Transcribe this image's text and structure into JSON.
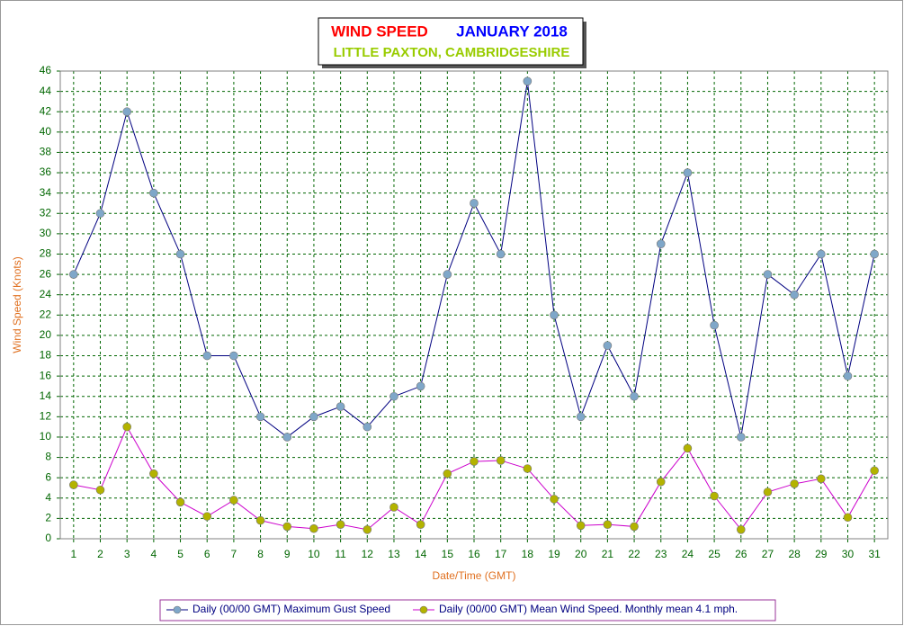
{
  "chart_data": {
    "type": "line",
    "title": [
      "WIND SPEED",
      "JANUARY 2018"
    ],
    "title_colors": [
      "#ff0000",
      "#0000ff"
    ],
    "subtitle": "LITTLE PAXTON, CAMBRIDGESHIRE",
    "subtitle_color": "#99cc00",
    "y_label": "Wind Speed (Knots)",
    "x_label": "Date/Time (GMT)",
    "categories": [
      1,
      2,
      3,
      4,
      5,
      6,
      7,
      8,
      9,
      10,
      11,
      12,
      13,
      14,
      15,
      16,
      17,
      18,
      19,
      20,
      21,
      22,
      23,
      24,
      25,
      26,
      27,
      28,
      29,
      30,
      31
    ],
    "series": [
      {
        "name": "Daily (00/00 GMT) Maximum Gust Speed",
        "color": "#000080",
        "marker_color": "#7fa7c9",
        "values": [
          26,
          32,
          42,
          34,
          28,
          18,
          18,
          12,
          10,
          12,
          13,
          11,
          14,
          15,
          26,
          33,
          28,
          45,
          22,
          12,
          19,
          14,
          29,
          36,
          21,
          10,
          26,
          24,
          28,
          16,
          28
        ]
      },
      {
        "name": "Daily (00/00 GMT) Mean Wind Speed. Monthly mean 4.1 mph.",
        "color": "#cc00cc",
        "marker_color": "#b3b300",
        "values": [
          5.3,
          4.8,
          11,
          6.4,
          3.6,
          2.2,
          3.8,
          1.8,
          1.2,
          1.0,
          1.4,
          0.9,
          3.1,
          1.4,
          6.4,
          7.6,
          7.7,
          6.9,
          3.9,
          1.3,
          1.4,
          1.2,
          5.6,
          8.9,
          4.2,
          0.9,
          4.6,
          5.4,
          5.9,
          2.1,
          6.7
        ]
      }
    ],
    "ylim": [
      0,
      46
    ],
    "yticks": [
      0,
      2,
      4,
      6,
      8,
      10,
      12,
      14,
      16,
      18,
      20,
      22,
      24,
      26,
      28,
      30,
      32,
      34,
      36,
      38,
      40,
      42,
      44,
      46
    ],
    "grid": true
  }
}
